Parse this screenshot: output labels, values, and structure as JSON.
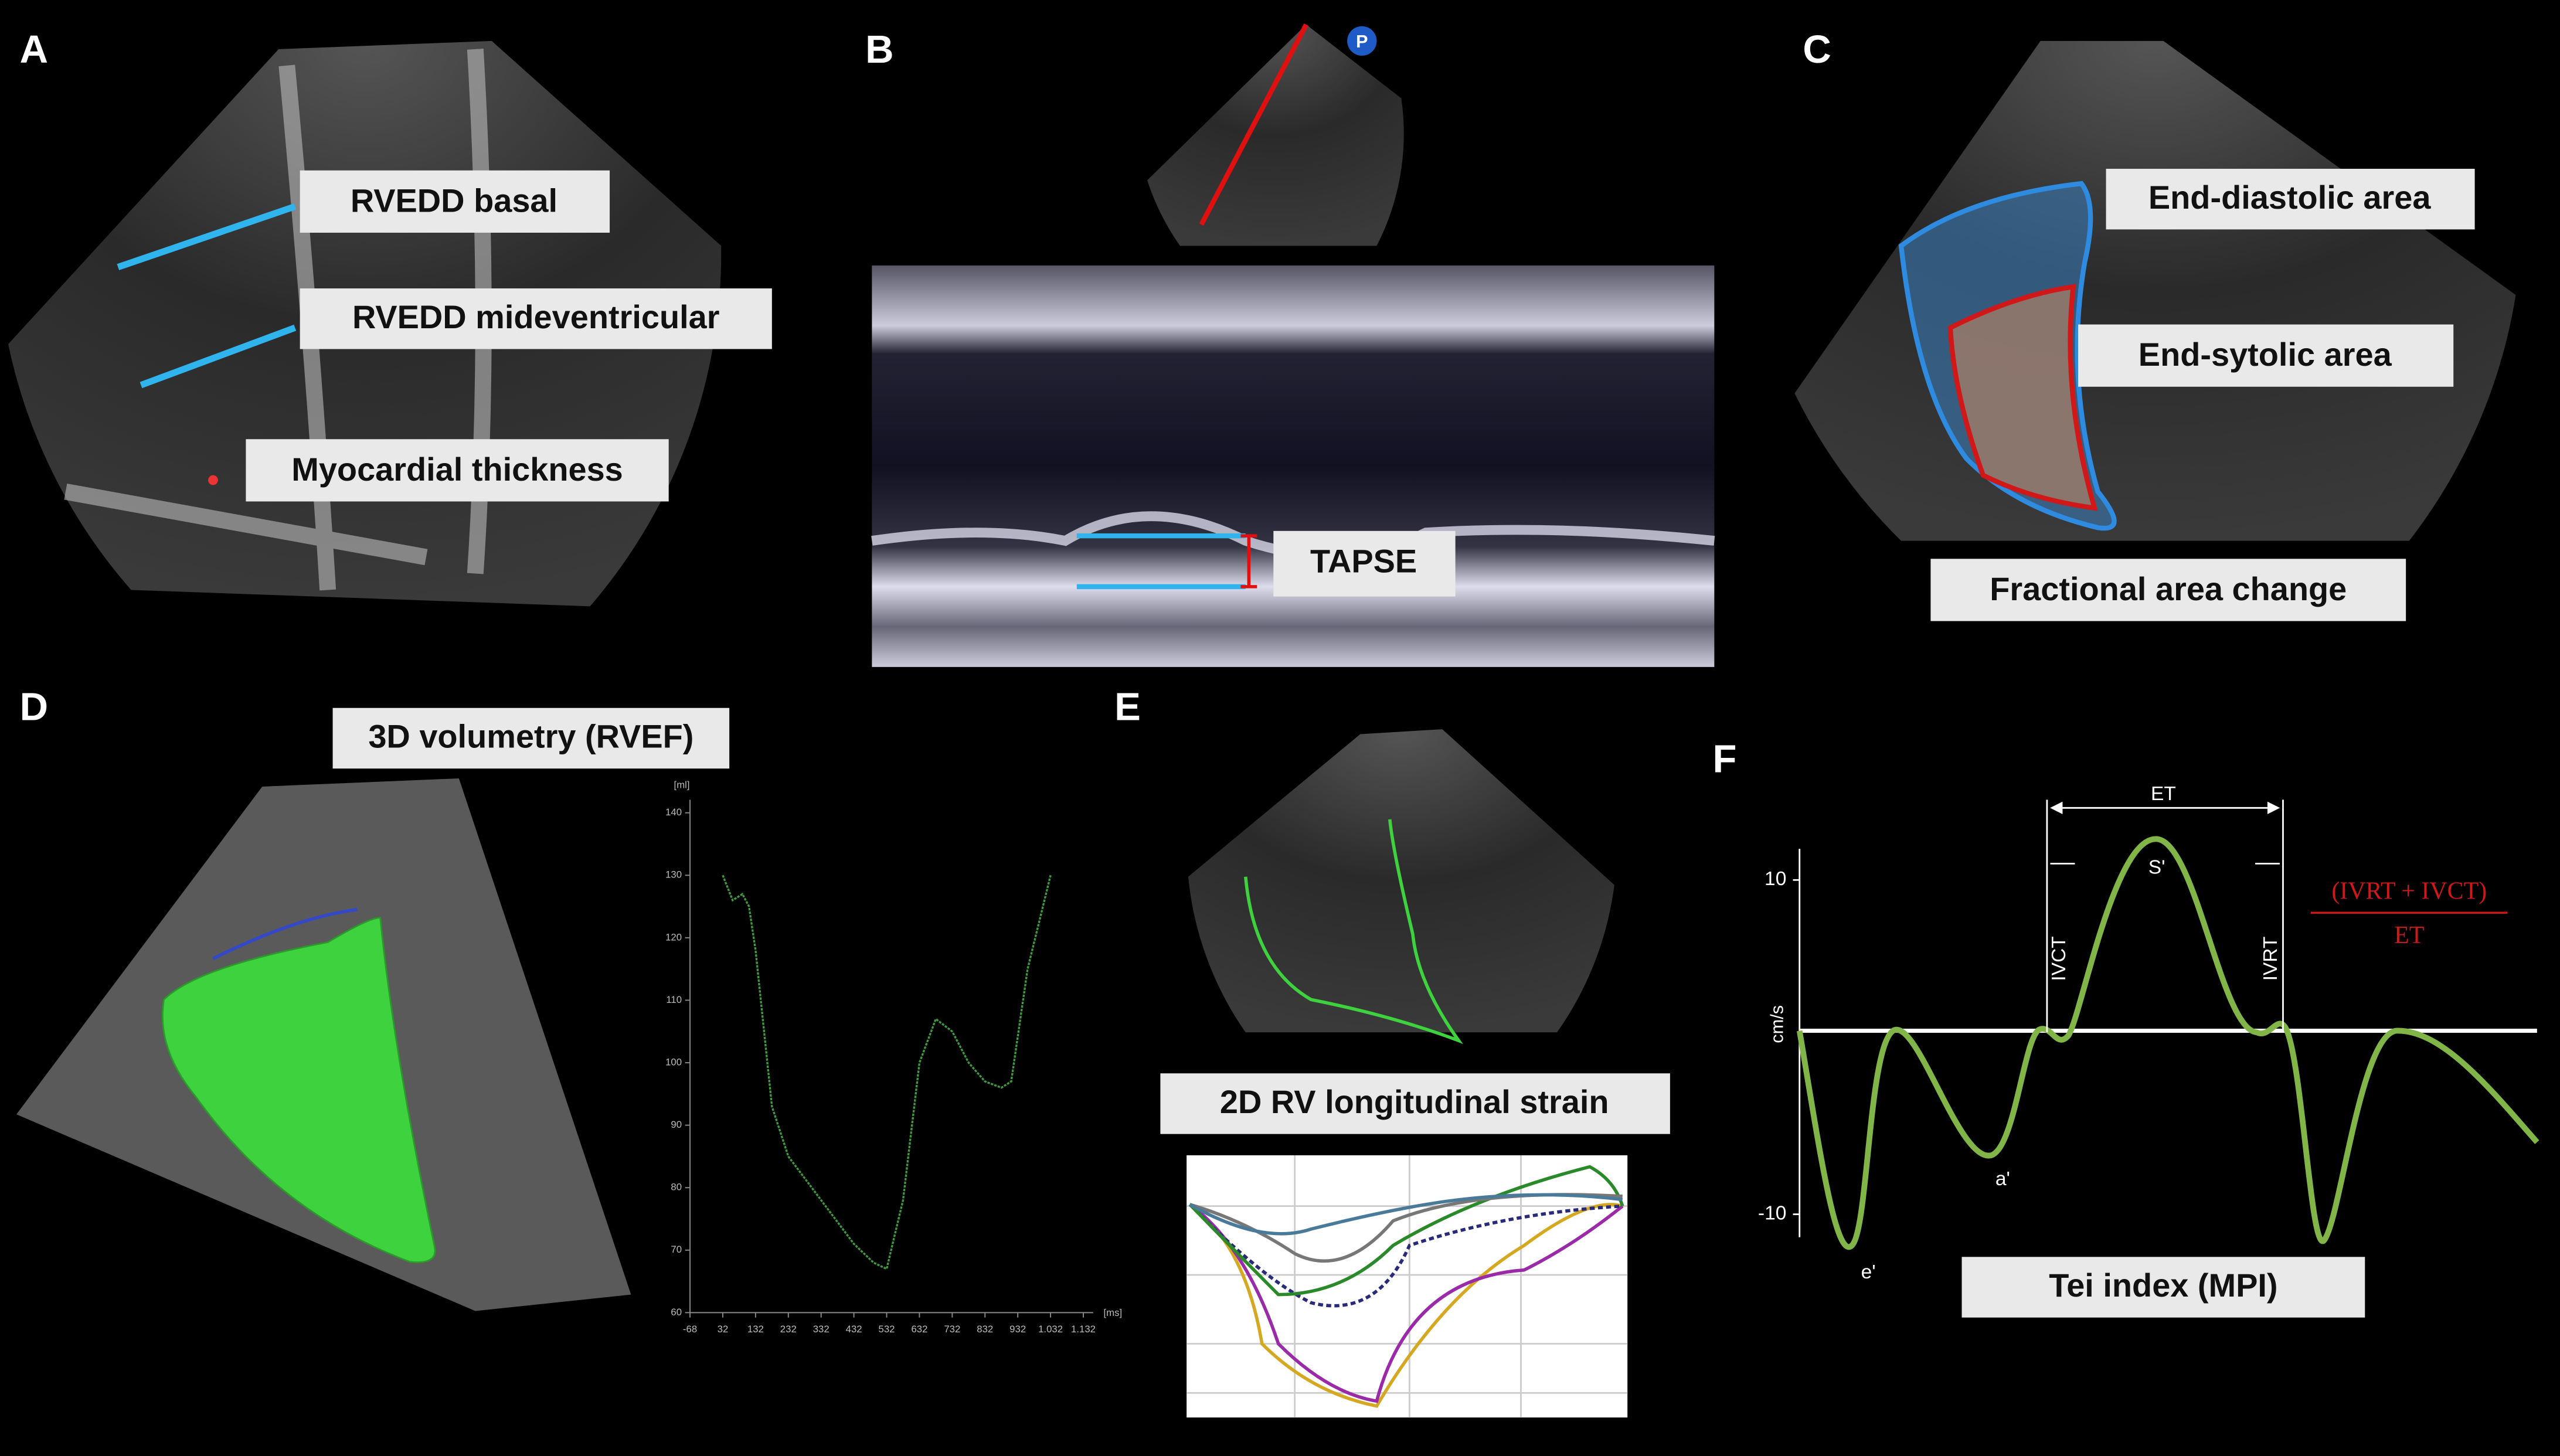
{
  "panels": [
    {
      "letter": "A",
      "labels": [
        "RVEDD basal",
        "RVEDD mideventricular",
        "Myocardial thickness"
      ]
    },
    {
      "letter": "B",
      "labels": [
        "TAPSE"
      ]
    },
    {
      "letter": "C",
      "labels": [
        "End-diastolic area",
        "End-sytolic area",
        "Fractional area change"
      ]
    },
    {
      "letter": "D",
      "labels": [
        "3D volumetry (RVEF)"
      ]
    },
    {
      "letter": "E",
      "labels": [
        "2D RV longitudinal strain"
      ]
    },
    {
      "letter": "F",
      "labels": [
        "Tei index (MPI)"
      ],
      "y_label": "cm/s",
      "yticks": [
        10,
        -10
      ],
      "annotations": [
        "ET",
        "IVCT",
        "IVRT",
        "S'",
        "a'",
        "e'"
      ],
      "formula": {
        "numerator": "(IVRT + IVCT)",
        "denominator": "ET"
      }
    }
  ],
  "chart_data": {
    "type": "line",
    "y_label": "[ml]",
    "x_label": "[ms]",
    "color": "#3f9a3f",
    "x": [
      32,
      62,
      92,
      112,
      132,
      182,
      232,
      332,
      432,
      492,
      532,
      582,
      632,
      682,
      732,
      782,
      832,
      882,
      912,
      962,
      1032
    ],
    "values": [
      130,
      126,
      127,
      125,
      118,
      93,
      85,
      78,
      71,
      68,
      67,
      78,
      100,
      107,
      105,
      100,
      97,
      96,
      97,
      115,
      130
    ],
    "xlim": [
      -68,
      1132
    ],
    "ylim": [
      60,
      140
    ],
    "xticks": [
      -68,
      32,
      132,
      232,
      332,
      432,
      532,
      632,
      732,
      832,
      932,
      {
        "value": 1032,
        "label": "1.032"
      },
      {
        "value": 1132,
        "label": "1.132"
      }
    ],
    "yticks": [
      60,
      70,
      80,
      90,
      100,
      110,
      120,
      130,
      140
    ]
  }
}
